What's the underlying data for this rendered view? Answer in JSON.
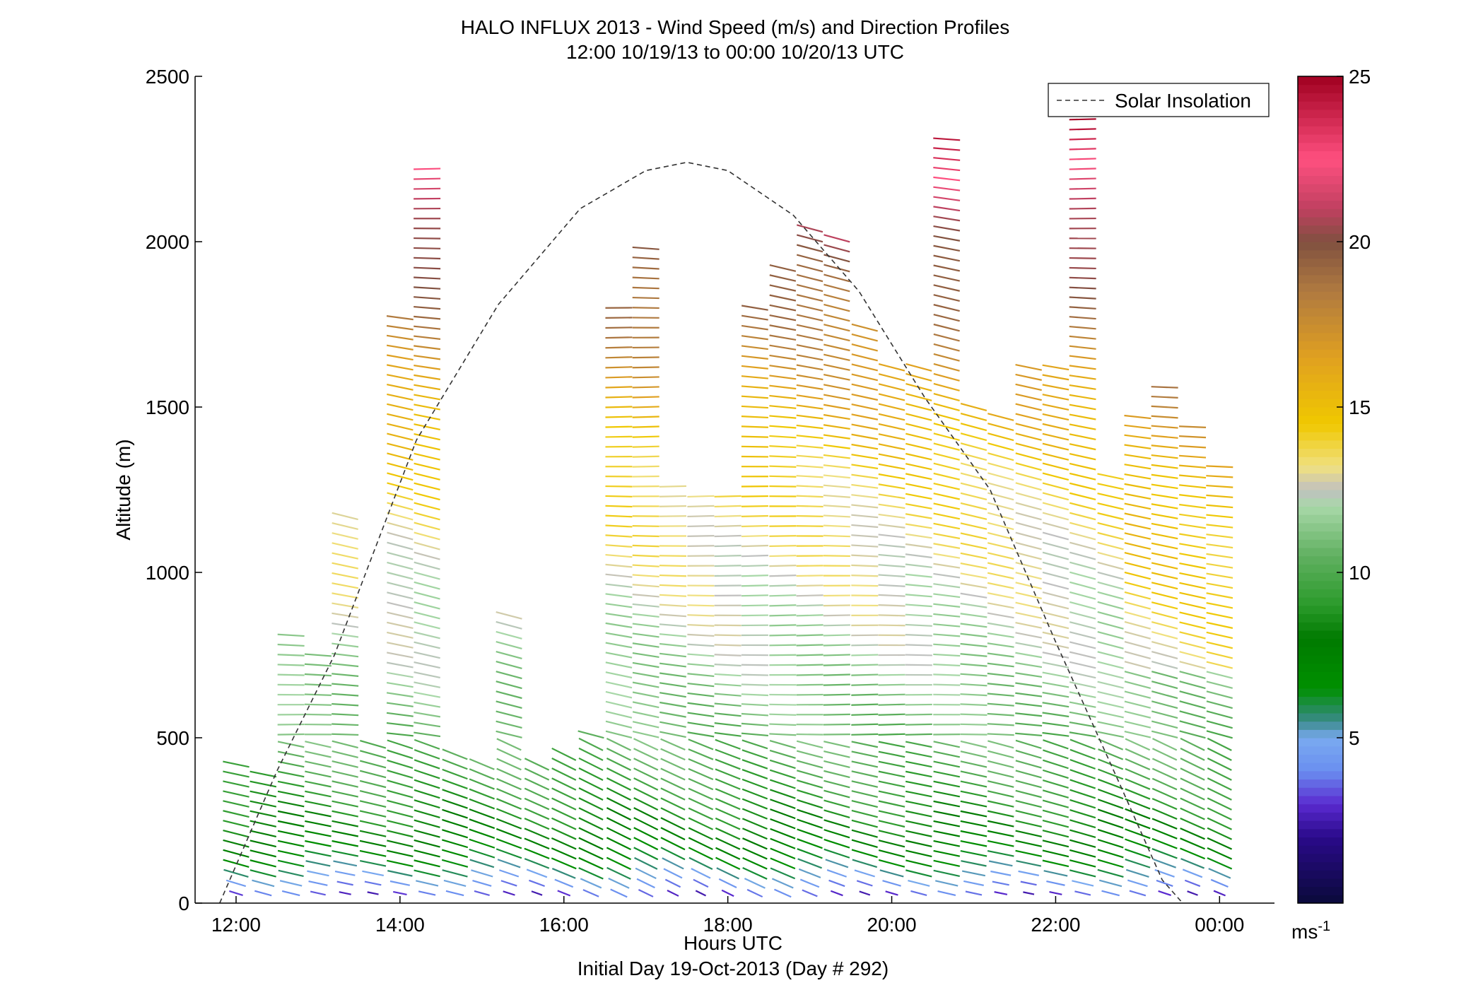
{
  "chart_data": {
    "type": "scatter",
    "title": "HALO INFLUX 2013 - Wind Speed (m/s) and Direction Profiles",
    "subtitle": "12:00 10/19/13 to 00:00 10/20/13  UTC",
    "xlabel": "Hours UTC",
    "xlabel2": "Initial Day 19-Oct-2013 (Day # 292)",
    "ylabel": "Altitude (m)",
    "x_tick_labels": [
      "12:00",
      "14:00",
      "16:00",
      "18:00",
      "20:00",
      "22:00",
      "00:00"
    ],
    "x_ticks_hours": [
      12,
      14,
      16,
      18,
      20,
      22,
      24
    ],
    "y_tick_labels": [
      "0",
      "500",
      "1000",
      "1500",
      "2000",
      "2500"
    ],
    "y_ticks": [
      0,
      500,
      1000,
      1500,
      2000,
      2500
    ],
    "xlim_hours": [
      11.5,
      24.67
    ],
    "ylim": [
      0,
      2500
    ],
    "legend": {
      "entries": [
        "Solar Insolation"
      ],
      "placement": "top-right"
    },
    "colorbar": {
      "label": "ms",
      "label_exponent": "-1",
      "range": [
        0,
        25
      ],
      "tick_labels": [
        "5",
        "10",
        "15",
        "20",
        "25"
      ],
      "ticks": [
        5,
        10,
        15,
        20,
        25
      ]
    },
    "solar_insolation_curve": {
      "x_hours": [
        11.8,
        12.5,
        13.2,
        14.2,
        15.2,
        16.2,
        17.0,
        17.5,
        18.0,
        18.8,
        19.6,
        20.4,
        21.2,
        22.0,
        22.8,
        23.3,
        23.55
      ],
      "y_m": [
        0,
        400,
        750,
        1400,
        1810,
        2100,
        2215,
        2240,
        2215,
        2080,
        1850,
        1530,
        1250,
        790,
        350,
        70,
        0
      ]
    },
    "profiles": [
      {
        "time": 12.0,
        "top": 430
      },
      {
        "time": 12.33,
        "top": 400
      },
      {
        "time": 12.67,
        "top": 820
      },
      {
        "time": 13.0,
        "top": 770
      },
      {
        "time": 13.33,
        "top": 1180
      },
      {
        "time": 13.67,
        "top": 480
      },
      {
        "time": 14.0,
        "top": 1790
      },
      {
        "time": 14.33,
        "top": 2240
      },
      {
        "time": 14.67,
        "top": 470
      },
      {
        "time": 15.0,
        "top": 440
      },
      {
        "time": 15.33,
        "top": 880
      },
      {
        "time": 15.67,
        "top": 420
      },
      {
        "time": 16.0,
        "top": 470
      },
      {
        "time": 16.33,
        "top": 520
      },
      {
        "time": 16.67,
        "top": 1810
      },
      {
        "time": 17.0,
        "top": 1980
      },
      {
        "time": 17.33,
        "top": 1260
      },
      {
        "time": 17.67,
        "top": 1250
      },
      {
        "time": 18.0,
        "top": 1250
      },
      {
        "time": 18.33,
        "top": 1800
      },
      {
        "time": 18.67,
        "top": 1930
      },
      {
        "time": 19.0,
        "top": 2060
      },
      {
        "time": 19.33,
        "top": 2010
      },
      {
        "time": 19.67,
        "top": 1760
      },
      {
        "time": 20.0,
        "top": 1640
      },
      {
        "time": 20.33,
        "top": 1630
      },
      {
        "time": 20.67,
        "top": 2320
      },
      {
        "time": 21.0,
        "top": 1520
      },
      {
        "time": 21.33,
        "top": 1470
      },
      {
        "time": 21.67,
        "top": 1630
      },
      {
        "time": 22.0,
        "top": 1620
      },
      {
        "time": 22.33,
        "top": 2460
      },
      {
        "time": 22.67,
        "top": 1310
      },
      {
        "time": 23.0,
        "top": 1470
      },
      {
        "time": 23.33,
        "top": 1570
      },
      {
        "time": 23.67,
        "top": 1460
      },
      {
        "time": 24.0,
        "top": 1340
      }
    ]
  }
}
